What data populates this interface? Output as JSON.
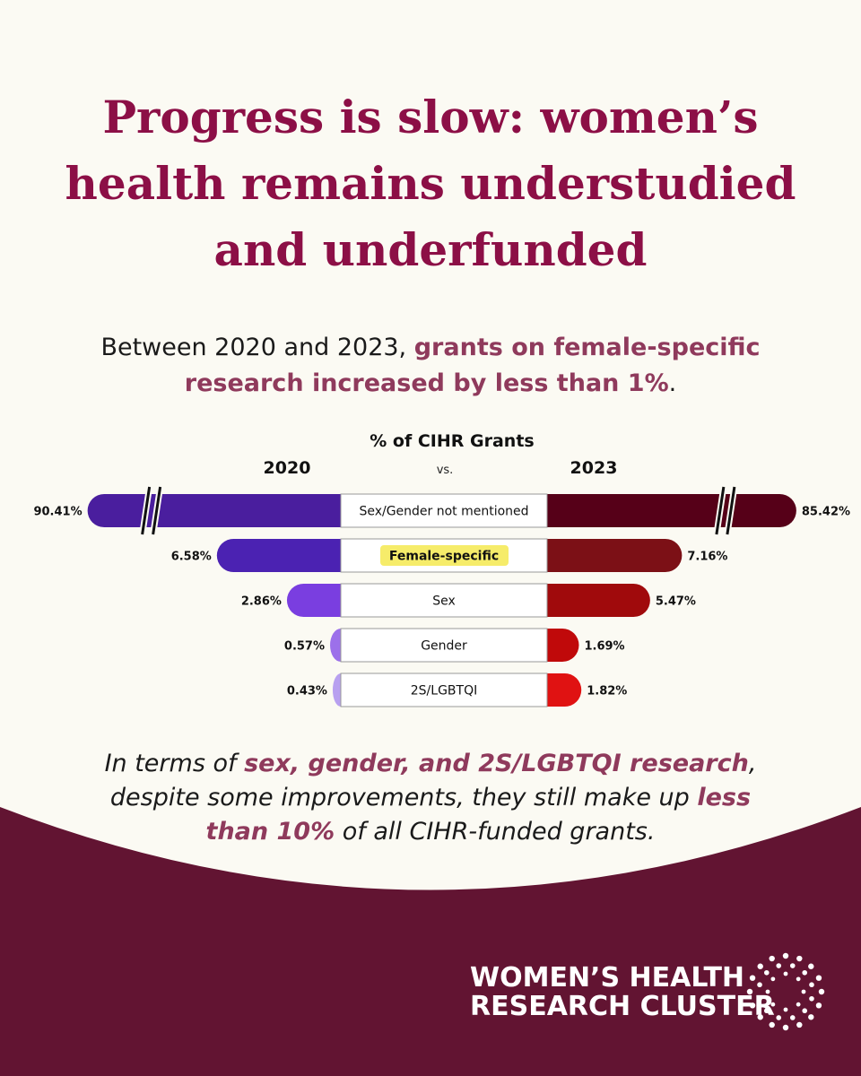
{
  "header": {
    "title": [
      "Progress is slow: women’s",
      "health remains understudied",
      "and underfunded"
    ],
    "intro": [
      "Between 2020 and 2023, ",
      "grants on female-specific",
      "research increased by less than 1%",
      "."
    ]
  },
  "chart_data": {
    "type": "butterfly",
    "title": "% of CIHR Grants",
    "separator": "vs.",
    "categories": [
      "Sex/Gender not mentioned",
      "Female-specific",
      "Sex",
      "Gender",
      "2S/LGBTQI"
    ],
    "highlight": 1,
    "series": [
      {
        "name": "2020",
        "colors": [
          "#4a1e9e",
          "#4b22b2",
          "#7a3ee0",
          "#9c70ea",
          "#b8a0f0"
        ],
        "values": [
          90.41,
          6.58,
          2.86,
          0.57,
          0.43
        ],
        "value_labels": [
          "90.41%",
          "6.58%",
          "2.86%",
          "0.57%",
          "0.43%"
        ]
      },
      {
        "name": "2023",
        "colors": [
          "#560018",
          "#7c1016",
          "#a00a0c",
          "#c0090a",
          "#e01212"
        ],
        "values": [
          85.42,
          7.16,
          5.47,
          1.69,
          1.82
        ],
        "value_labels": [
          "85.42%",
          "7.16%",
          "5.47%",
          "1.69%",
          "1.82%"
        ]
      }
    ]
  },
  "footer": {
    "text": [
      "In terms of ",
      "sex, gender, and 2S/LGBTQI research",
      ",",
      "despite some improvements, they still make up ",
      "less",
      "than 10%",
      " of all CIHR-funded grants."
    ],
    "logo": [
      "WOMEN’S HEALTH",
      "RESEARCH CLUSTER"
    ]
  }
}
